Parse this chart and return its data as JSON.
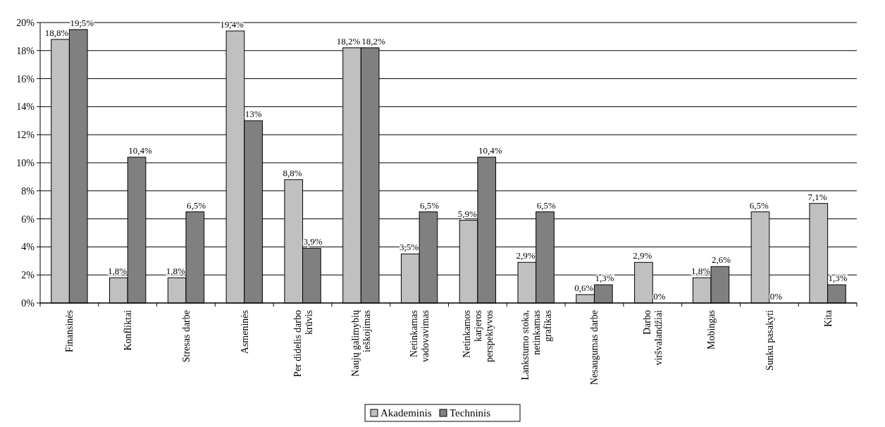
{
  "chart_data": {
    "type": "bar",
    "categories": [
      "Finansinės",
      "Konfliktai",
      "Stresas darbe",
      "Asmeninės",
      "Per didelis darbo krūvis",
      "Naujų galimybių ieškojimas",
      "Netinkamas vadovavimas",
      "Netinkamos karjeros perspektyvos",
      "Lankstumo stoka, netinkamas grafikas",
      "Nesaugumas darbe",
      "Darbo viršvalandžiai",
      "Mobingas",
      "Sunku pasakyti",
      "Kita"
    ],
    "series": [
      {
        "name": "Akademinis",
        "color": "#c0c0c0",
        "values": [
          18.8,
          1.8,
          1.8,
          19.4,
          8.8,
          18.2,
          3.5,
          5.9,
          2.9,
          0.6,
          2.9,
          1.8,
          6.5,
          7.1
        ],
        "value_labels": [
          "18,8%",
          "1,8%",
          "1,8%",
          "19,4%",
          "8,8%",
          "18,2%",
          "3,5%",
          "5,9%",
          "2,9%",
          "0,6%",
          "2,9%",
          "1,8%",
          "6,5%",
          "7,1%"
        ]
      },
      {
        "name": "Techninis",
        "color": "#808080",
        "values": [
          19.5,
          10.4,
          6.5,
          13,
          3.9,
          18.2,
          6.5,
          10.4,
          6.5,
          1.3,
          0,
          2.6,
          0,
          1.3
        ],
        "value_labels": [
          "19,5%",
          "10,4%",
          "6,5%",
          "13%",
          "3,9%",
          "18,2%",
          "6,5%",
          "10,4%",
          "6,5%",
          "1,3%",
          "0%",
          "2,6%",
          "0%",
          "1,3%"
        ]
      }
    ],
    "ylim": [
      0,
      20
    ],
    "yticks": [
      {
        "value": 0,
        "label": "0%"
      },
      {
        "value": 2,
        "label": "2%"
      },
      {
        "value": 4,
        "label": "4%"
      },
      {
        "value": 6,
        "label": "6%"
      },
      {
        "value": 8,
        "label": "8%"
      },
      {
        "value": 10,
        "label": "10%"
      },
      {
        "value": 12,
        "label": "12%"
      },
      {
        "value": 14,
        "label": "14%"
      },
      {
        "value": 16,
        "label": "16%"
      },
      {
        "value": 18,
        "label": "18%"
      },
      {
        "value": 20,
        "label": "20%"
      }
    ],
    "grid": "y",
    "legend": "bottom"
  }
}
